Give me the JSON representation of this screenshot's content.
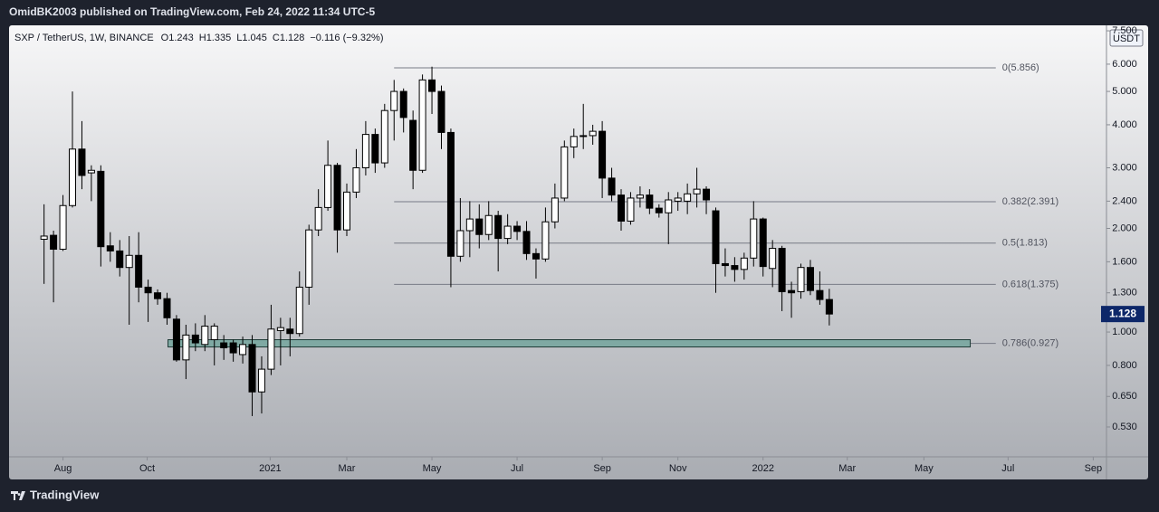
{
  "header": {
    "publisher": "OmidBK2003 published on TradingView.com, Feb 24, 2022 11:34 UTC-5"
  },
  "footer": {
    "brand": "TradingView"
  },
  "chart_data": {
    "type": "candlestick",
    "symbol": "SXP / TetherUS, 1W, BINANCE",
    "ohlc_labels": [
      "O1.243",
      "H1.335",
      "L1.045",
      "C1.128",
      "−0.116 (−9.32%)"
    ],
    "currency": "USDT",
    "log_scale": true,
    "colors": {
      "up": "#ffffff",
      "down": "#000000",
      "wick": "#000000",
      "zone": "#7fa9a3",
      "fib": "#787b86"
    },
    "open": [
      1.86,
      1.91,
      1.74,
      2.33,
      3.4,
      2.9,
      2.93,
      1.78,
      1.72,
      1.54,
      1.67,
      1.35,
      1.3,
      1.25,
      1.09,
      0.83,
      0.98,
      0.92,
      0.95,
      0.93,
      0.93,
      0.86,
      0.92,
      0.67,
      0.78,
      1.01,
      1.02,
      0.99,
      1.35,
      1.98,
      2.3,
      3.05,
      1.98,
      2.55,
      3.0,
      3.75,
      3.1,
      4.4,
      5.0,
      4.12,
      2.95,
      5.4,
      5.0,
      3.8,
      1.66,
      1.97,
      2.13,
      1.92,
      2.18,
      1.87,
      2.03,
      1.96,
      1.69,
      1.63,
      2.09,
      2.45,
      3.45,
      3.7,
      3.72,
      3.83,
      2.8,
      2.5,
      2.1,
      2.45,
      2.5,
      2.29,
      2.22,
      2.4,
      2.4,
      2.52,
      2.6,
      2.25,
      1.58,
      1.56,
      1.52,
      1.64,
      2.13,
      1.53,
      1.75,
      1.32,
      1.31,
      1.54,
      1.32,
      1.243
    ],
    "high": [
      2.35,
      1.97,
      2.5,
      5.0,
      4.1,
      3.05,
      3.05,
      1.95,
      1.85,
      1.9,
      1.95,
      1.42,
      1.33,
      1.3,
      1.12,
      1.05,
      1.06,
      1.12,
      1.06,
      0.98,
      0.95,
      0.97,
      0.98,
      0.85,
      1.2,
      1.1,
      1.1,
      1.5,
      2.05,
      2.6,
      3.6,
      3.1,
      2.7,
      3.4,
      4.1,
      3.9,
      4.6,
      5.4,
      5.1,
      4.4,
      5.6,
      5.9,
      5.2,
      3.9,
      2.45,
      2.4,
      2.35,
      2.4,
      2.25,
      2.2,
      2.1,
      2.1,
      1.75,
      2.3,
      2.7,
      3.6,
      3.9,
      4.6,
      4.0,
      4.1,
      3.0,
      2.6,
      2.55,
      2.65,
      2.6,
      2.35,
      2.55,
      2.55,
      2.7,
      3.0,
      2.65,
      2.3,
      1.75,
      1.65,
      1.7,
      2.4,
      2.15,
      1.85,
      1.78,
      1.4,
      1.58,
      1.62,
      1.5,
      1.335
    ],
    "low": [
      1.38,
      1.22,
      1.72,
      2.3,
      2.6,
      2.4,
      1.55,
      1.6,
      1.45,
      1.05,
      1.22,
      1.07,
      1.2,
      1.05,
      0.82,
      0.73,
      0.88,
      0.88,
      0.8,
      0.83,
      0.82,
      0.81,
      0.57,
      0.58,
      0.75,
      0.8,
      0.85,
      0.97,
      1.2,
      1.9,
      2.25,
      1.7,
      1.9,
      2.45,
      2.85,
      2.9,
      3.0,
      3.6,
      3.8,
      2.6,
      2.9,
      4.3,
      3.4,
      1.35,
      1.6,
      1.65,
      1.75,
      1.85,
      1.5,
      1.8,
      1.85,
      1.62,
      1.43,
      1.6,
      2.0,
      2.4,
      3.2,
      3.4,
      3.5,
      2.45,
      2.4,
      1.97,
      2.05,
      2.3,
      2.2,
      2.15,
      1.8,
      2.25,
      2.2,
      2.3,
      2.2,
      1.3,
      1.45,
      1.4,
      1.42,
      1.55,
      1.45,
      1.35,
      1.15,
      1.1,
      1.25,
      1.28,
      1.2,
      1.045
    ],
    "close": [
      1.9,
      1.74,
      2.33,
      3.4,
      2.85,
      2.95,
      1.77,
      1.72,
      1.54,
      1.67,
      1.35,
      1.3,
      1.25,
      1.1,
      0.83,
      0.98,
      0.93,
      1.04,
      1.04,
      0.9,
      0.87,
      0.92,
      0.67,
      0.78,
      1.02,
      1.03,
      0.99,
      1.35,
      1.98,
      2.3,
      3.05,
      1.98,
      2.55,
      3.0,
      3.75,
      3.1,
      4.4,
      5.0,
      4.2,
      2.95,
      5.4,
      5.0,
      3.8,
      1.66,
      1.97,
      2.13,
      1.92,
      2.18,
      1.87,
      2.03,
      1.96,
      1.69,
      1.63,
      2.09,
      2.45,
      3.45,
      3.7,
      3.72,
      3.83,
      2.8,
      2.5,
      2.1,
      2.45,
      2.5,
      2.29,
      2.22,
      2.42,
      2.45,
      2.52,
      2.6,
      2.42,
      1.58,
      1.56,
      1.52,
      1.64,
      2.13,
      1.55,
      1.75,
      1.31,
      1.3,
      1.54,
      1.32,
      1.243,
      1.128
    ],
    "last_price": 1.128,
    "xlim": [
      -3.7,
      112.3
    ],
    "xticks": [
      {
        "value": 2,
        "label": "Aug"
      },
      {
        "value": 10.9,
        "label": "Oct"
      },
      {
        "value": 23.9,
        "label": "2021"
      },
      {
        "value": 32,
        "label": "Mar"
      },
      {
        "value": 41,
        "label": "May"
      },
      {
        "value": 50,
        "label": "Jul"
      },
      {
        "value": 59,
        "label": "Sep"
      },
      {
        "value": 67,
        "label": "Nov"
      },
      {
        "value": 76,
        "label": "2022"
      },
      {
        "value": 84.9,
        "label": "Mar"
      },
      {
        "value": 93,
        "label": "May"
      },
      {
        "value": 101.9,
        "label": "Jul"
      },
      {
        "value": 110.9,
        "label": "Sep"
      }
    ],
    "ylim": [
      0.434,
      7.78
    ],
    "yticks": [
      {
        "value": 0.53,
        "label": "0.530"
      },
      {
        "value": 0.65,
        "label": "0.650"
      },
      {
        "value": 0.8,
        "label": "0.800"
      },
      {
        "value": 1,
        "label": "1.000"
      },
      {
        "value": 1.3,
        "label": "1.300"
      },
      {
        "value": 1.6,
        "label": "1.600"
      },
      {
        "value": 2,
        "label": "2.000"
      },
      {
        "value": 2.4,
        "label": "2.400"
      },
      {
        "value": 3,
        "label": "3.000"
      },
      {
        "value": 4,
        "label": "4.000"
      },
      {
        "value": 5,
        "label": "5.000"
      },
      {
        "value": 6,
        "label": "6.000"
      },
      {
        "value": 7.5,
        "label": "7.500"
      }
    ],
    "fib_levels": [
      {
        "value": 5.856,
        "label": "0(5.856)"
      },
      {
        "value": 2.391,
        "label": "0.382(2.391)"
      },
      {
        "value": 1.813,
        "label": "0.5(1.813)"
      },
      {
        "value": 1.375,
        "label": "0.618(1.375)"
      },
      {
        "value": 0.927,
        "label": "0.786(0.927)"
      }
    ],
    "fib_x": [
      37,
      100.6
    ],
    "zone": {
      "x": [
        13.1,
        97.9
      ],
      "y": [
        0.905,
        0.95
      ]
    }
  }
}
